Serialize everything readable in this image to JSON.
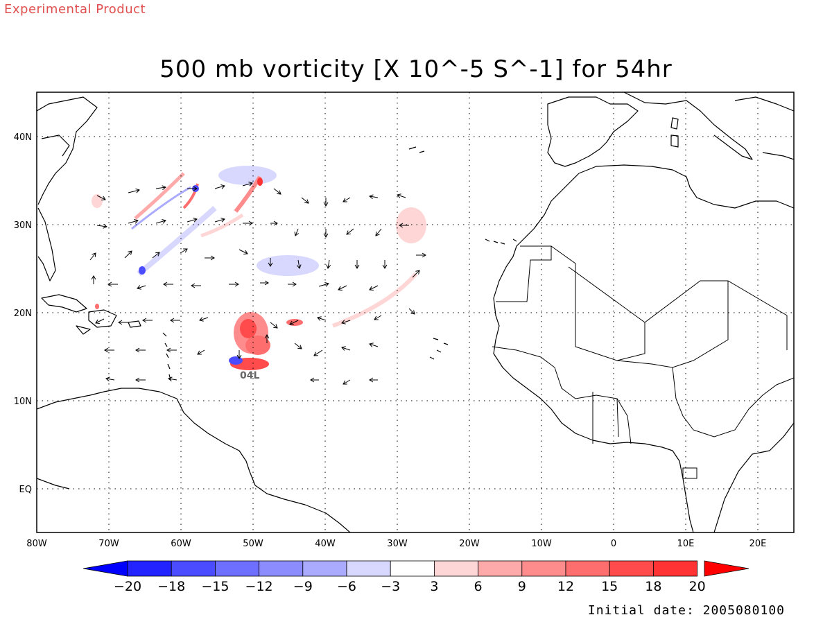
{
  "header": {
    "experimental_label": "Experimental Product",
    "title": "500 mb vorticity [X 10^-5 S^-1] for 54hr",
    "initial_date": "Initial date: 2005080100"
  },
  "map": {
    "lon_labels": [
      "80W",
      "70W",
      "60W",
      "50W",
      "40W",
      "30W",
      "20W",
      "10W",
      "0",
      "10E",
      "20E"
    ],
    "lat_labels": [
      "EQ",
      "10N",
      "20N",
      "30N",
      "40N"
    ],
    "storm_label": "04L"
  },
  "colorbar": {
    "labels": [
      "-20",
      "-18",
      "-15",
      "-12",
      "-9",
      "-6",
      "-3",
      "3",
      "6",
      "9",
      "12",
      "15",
      "18",
      "20"
    ],
    "colors": [
      "#2323ff",
      "#4b4bff",
      "#6e6eff",
      "#8c8cff",
      "#aaaaff",
      "#d8d8ff",
      "#ffffff",
      "#ffd6d6",
      "#ffaaaa",
      "#ff8c8c",
      "#ff6e6e",
      "#ff4b4b",
      "#ff3333"
    ],
    "under_color": "#0000ff",
    "over_color": "#ff0000"
  }
}
